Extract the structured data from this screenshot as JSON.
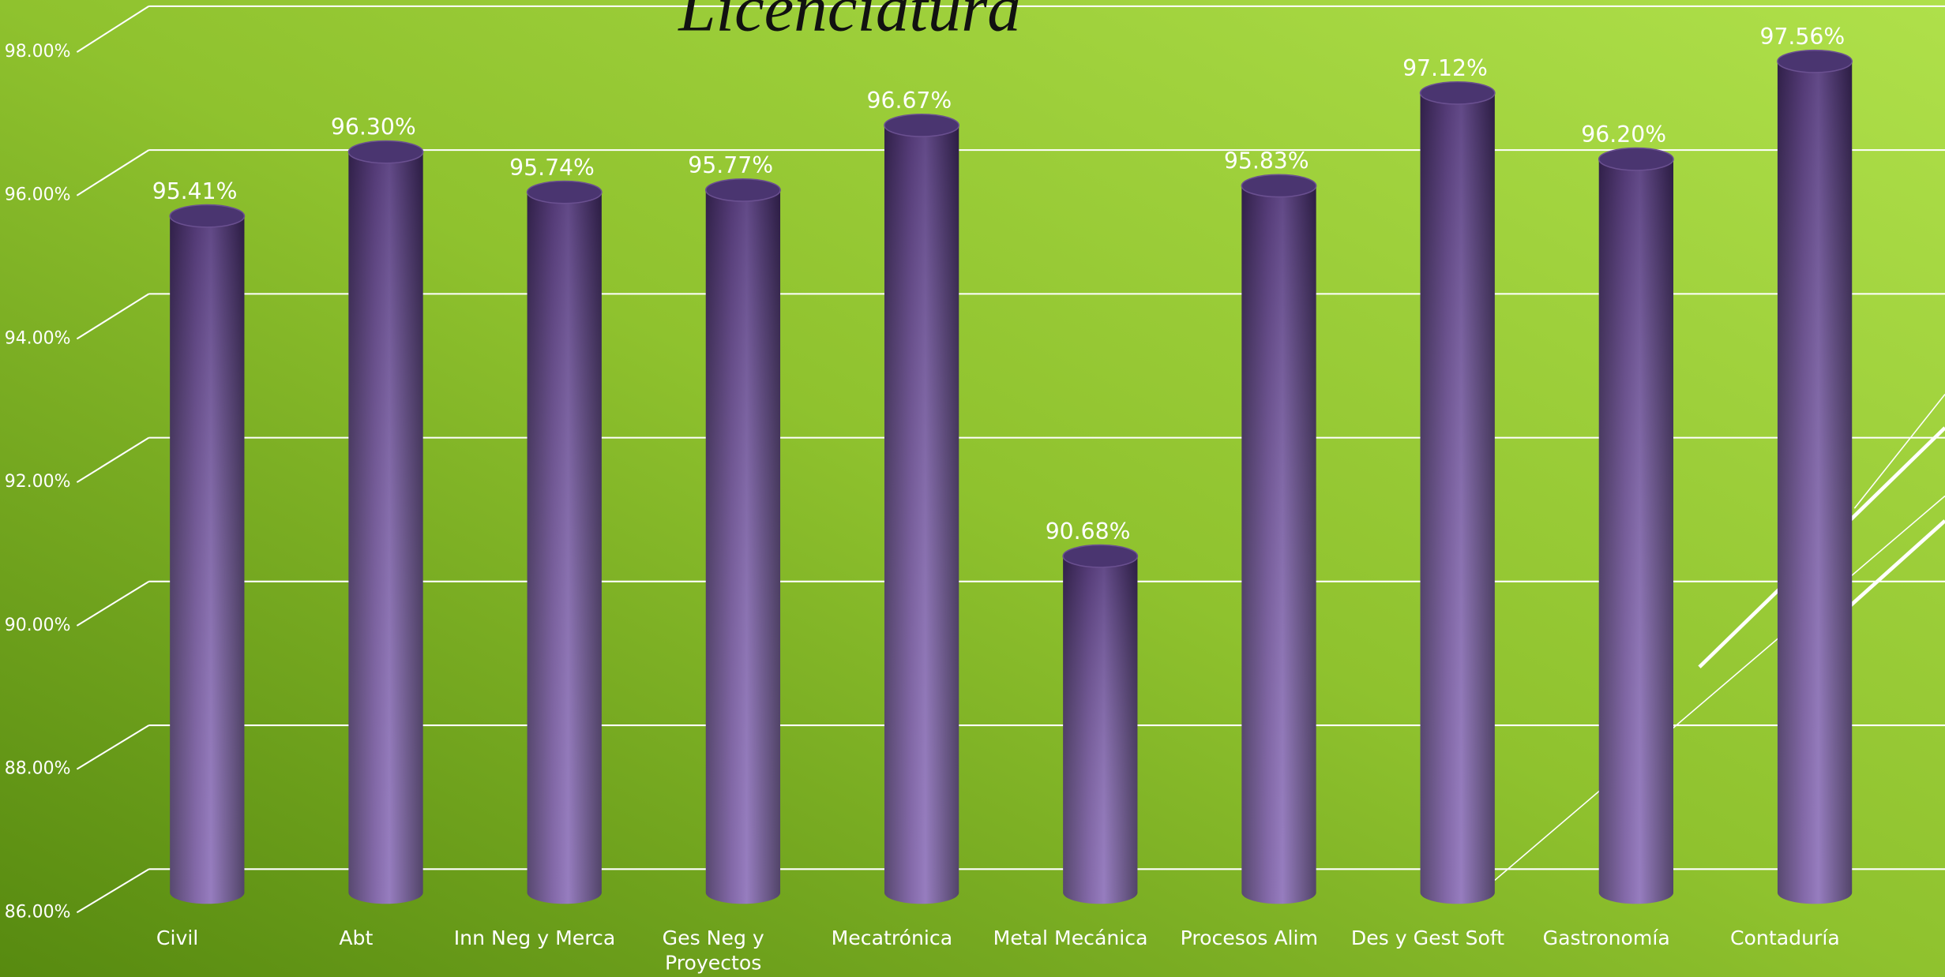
{
  "chart_data": {
    "type": "bar",
    "title": "Licenciatura",
    "categories": [
      "Civil",
      "Abt",
      "Inn Neg y Merca",
      "Ges Neg y Proyectos",
      "Mecatrónica",
      "Metal Mecánica",
      "Procesos Alim",
      "Des y Gest Soft",
      "Gastronomía",
      "Contaduría"
    ],
    "values": [
      95.41,
      96.3,
      95.74,
      95.77,
      96.67,
      90.68,
      95.83,
      97.12,
      96.2,
      97.56
    ],
    "value_labels": [
      "95.41%",
      "96.30%",
      "95.74%",
      "95.77%",
      "96.67%",
      "90.68%",
      "95.83%",
      "97.12%",
      "96.20%",
      "97.56%"
    ],
    "color": "#7a5aa8",
    "ylim": [
      86,
      98
    ],
    "yticks": [
      {
        "value": 86,
        "label": "86.00%"
      },
      {
        "value": 88,
        "label": "88.00%"
      },
      {
        "value": 90,
        "label": "90.00%"
      },
      {
        "value": 92,
        "label": "92.00%"
      },
      {
        "value": 94,
        "label": "94.00%"
      },
      {
        "value": 96,
        "label": "96.00%"
      },
      {
        "value": 98,
        "label": "98.00%"
      }
    ],
    "grid": true
  }
}
